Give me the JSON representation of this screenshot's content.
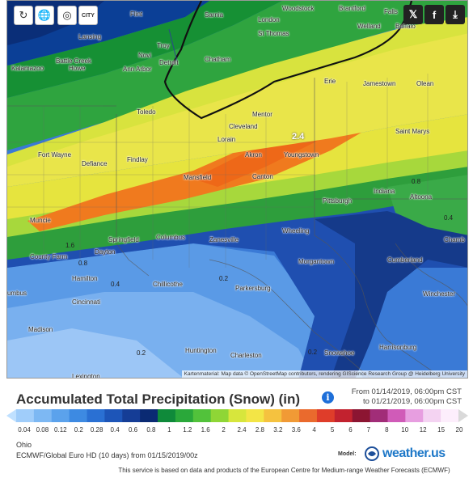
{
  "map": {
    "peak_label": "2.4",
    "attribution": "Kartenmaterial: Map data © OpenStreetMap contributors, rendering GIScience Research Group @ Heidelberg University",
    "cities": [
      {
        "name": "Flint"
      },
      {
        "name": "Sarnia"
      },
      {
        "name": "Woodstock"
      },
      {
        "name": "Brantford"
      },
      {
        "name": "London"
      },
      {
        "name": "Falls"
      },
      {
        "name": "Welland"
      },
      {
        "name": "Buffalo"
      },
      {
        "name": "Lansing"
      },
      {
        "name": "St Thomas"
      },
      {
        "name": "Troy"
      },
      {
        "name": "Novi"
      },
      {
        "name": "Battle Creek"
      },
      {
        "name": "Detroit"
      },
      {
        "name": "Chatham"
      },
      {
        "name": "Kalamazoo"
      },
      {
        "name": "Howe"
      },
      {
        "name": "Ann Arbor"
      },
      {
        "name": "Erie"
      },
      {
        "name": "Jamestown"
      },
      {
        "name": "Olean"
      },
      {
        "name": "Toledo"
      },
      {
        "name": "Mentor"
      },
      {
        "name": "Cleveland"
      },
      {
        "name": "Lorain"
      },
      {
        "name": "Saint Marys"
      },
      {
        "name": "Fort Wayne"
      },
      {
        "name": "Defiance"
      },
      {
        "name": "Akron"
      },
      {
        "name": "Youngstown"
      },
      {
        "name": "Findlay"
      },
      {
        "name": "Mansfield"
      },
      {
        "name": "Canton"
      },
      {
        "name": "Indiana"
      },
      {
        "name": "Altoona"
      },
      {
        "name": "Pittsburgh"
      },
      {
        "name": "Muncie"
      },
      {
        "name": "Wheeling"
      },
      {
        "name": "Springfield"
      },
      {
        "name": "Columbus"
      },
      {
        "name": "Zanesville"
      },
      {
        "name": "Chamb"
      },
      {
        "name": "Dayton"
      },
      {
        "name": "County Farm"
      },
      {
        "name": "Morgantown"
      },
      {
        "name": "Cumberland"
      },
      {
        "name": "Hamilton"
      },
      {
        "name": "Chillicothe"
      },
      {
        "name": "Parkersburg"
      },
      {
        "name": "Winchester"
      },
      {
        "name": "umbus"
      },
      {
        "name": "Cincinnati"
      },
      {
        "name": "Madison"
      },
      {
        "name": "Harrisonburg"
      },
      {
        "name": "Huntington"
      },
      {
        "name": "Charleston"
      },
      {
        "name": "Snowshoe"
      },
      {
        "name": "Lexington"
      }
    ],
    "contour_values": [
      "0.8",
      "1.6",
      "0.8",
      "0.4",
      "0.2",
      "0.2",
      "0.2",
      "0.4"
    ]
  },
  "toolbar": {
    "refresh_icon": "refresh-icon",
    "globe_icon": "globe-icon",
    "city_label": "CITY"
  },
  "social": {
    "twitter": "twitter-icon",
    "facebook": "facebook-icon",
    "download": "download-icon"
  },
  "header": {
    "title": "Accumulated Total Precipitation (Snow) (in)",
    "from": "From 01/14/2019, 06:00pm CST",
    "to": "to 01/21/2019, 06:00pm CST"
  },
  "legend": {
    "labels": [
      "0.04",
      "0.08",
      "0.12",
      "0.2",
      "0.28",
      "0.4",
      "0.6",
      "0.8",
      "1",
      "1.2",
      "1.6",
      "2",
      "2.4",
      "2.8",
      "3.2",
      "3.6",
      "4",
      "5",
      "6",
      "7",
      "8",
      "10",
      "12",
      "15",
      "20"
    ],
    "colors": [
      "#bfe0ff",
      "#a0cdfa",
      "#7db8f3",
      "#5ba2ec",
      "#3d8ae2",
      "#2a70d3",
      "#1d55b8",
      "#153d96",
      "#0a2a73",
      "#0f8a3a",
      "#2aa83a",
      "#52c23b",
      "#8fd636",
      "#d7e63c",
      "#f3e546",
      "#f5c23f",
      "#f19a35",
      "#ea6a2d",
      "#df3d2a",
      "#c2222f",
      "#8c1532",
      "#a12d78",
      "#d05bb8",
      "#e79ee0",
      "#f4d3f2",
      "#fdeefc",
      "#d9d9d9"
    ]
  },
  "meta": {
    "region": "Ohio",
    "model_line": "ECMWF/Global Euro HD  (10 days)  from 01/15/2019/00z",
    "model_label": "Model:",
    "brand": "weather.us",
    "footer": "This service is based on data and products of the European Centre for Medium-range Weather Forecasts (ECMWF)"
  }
}
